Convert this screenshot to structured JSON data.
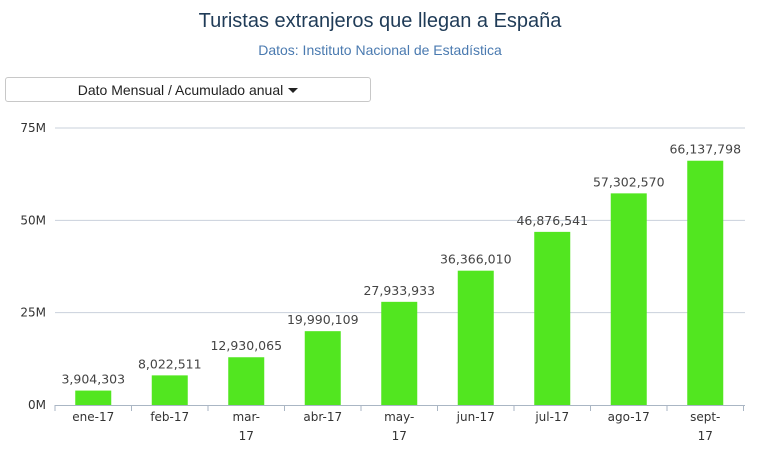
{
  "header": {
    "title": "Turistas extranjeros que llegan a España",
    "subtitle": "Datos: Instituto Nacional de Estadística"
  },
  "controls": {
    "view_selector_label": "Dato Mensual / Acumulado anual",
    "view_selector_icon": "caret-down-icon"
  },
  "colors": {
    "bar": "#52e620",
    "grid": "#c9d1db",
    "axis": "#aab6c4"
  },
  "chart_data": {
    "type": "bar",
    "title": "Turistas extranjeros que llegan a España",
    "subtitle": "Datos: Instituto Nacional de Estadística",
    "categories": [
      [
        "ene-17"
      ],
      [
        "feb-17"
      ],
      [
        "mar-",
        "17"
      ],
      [
        "abr-17"
      ],
      [
        "may-",
        "17"
      ],
      [
        "jun-17"
      ],
      [
        "jul-17"
      ],
      [
        "ago-17"
      ],
      [
        "sept-",
        "17"
      ]
    ],
    "values": [
      3904303,
      8022511,
      12930065,
      19990109,
      27933933,
      36366010,
      46876541,
      57302570,
      66137798
    ],
    "value_labels": [
      "3,904,303",
      "8,022,511",
      "12,930,065",
      "19,990,109",
      "27,933,933",
      "36,366,010",
      "46,876,541",
      "57,302,570",
      "66,137,798"
    ],
    "yticks": [
      0,
      25000000,
      50000000,
      75000000
    ],
    "ytick_labels": [
      "0M",
      "25M",
      "50M",
      "75M"
    ],
    "ylim": [
      0,
      75000000
    ],
    "grid": true,
    "legend": "none"
  }
}
